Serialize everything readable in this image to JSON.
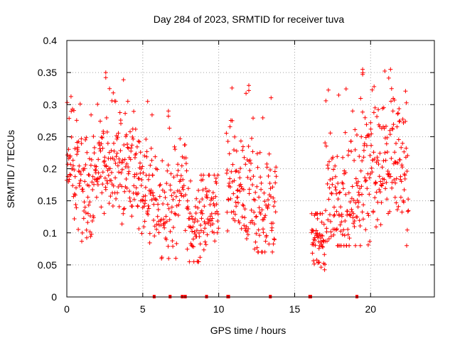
{
  "chart_data": {
    "type": "scatter",
    "title": "Day 284 of 2023, SRMTID for receiver tuva",
    "xlabel": "GPS time / hours",
    "ylabel": "SRMTID / TECUs",
    "xlim": [
      0,
      24.2
    ],
    "ylim": [
      0,
      0.4
    ],
    "x_ticks": [
      0,
      5,
      10,
      15,
      20
    ],
    "x_tick_labels": [
      "0",
      "5",
      "10",
      "15",
      "20"
    ],
    "y_ticks": [
      0,
      0.05,
      0.1,
      0.15,
      0.2,
      0.25,
      0.3,
      0.35,
      0.4
    ],
    "y_tick_labels": [
      "0",
      "0.05",
      "0.1",
      "0.15",
      "0.2",
      "0.25",
      "0.3",
      "0.35",
      "0.4"
    ],
    "grid": true,
    "marker": "plus",
    "color": "#ff0000",
    "series": [
      {
        "name": "SRMTID",
        "segments": [
          {
            "x_start": 0.0,
            "x_end": 5.7,
            "points_per_hour": 55,
            "base": [
              0.22,
              0.2,
              0.18,
              0.16,
              0.19,
              0.21,
              0.24,
              0.22,
              0.2,
              0.18,
              0.16,
              0.15
            ],
            "spread": 0.045,
            "max": 0.35,
            "min": 0.08
          },
          {
            "x_start": 5.7,
            "x_end": 7.9,
            "points_per_hour": 45,
            "base": [
              0.15,
              0.14,
              0.13,
              0.15,
              0.17,
              0.18
            ],
            "spread": 0.035,
            "max": 0.29,
            "min": 0.06
          },
          {
            "x_start": 7.9,
            "x_end": 10.0,
            "points_per_hour": 50,
            "base": [
              0.11,
              0.1,
              0.1,
              0.12,
              0.14,
              0.15
            ],
            "spread": 0.03,
            "max": 0.19,
            "min": 0.055
          },
          {
            "x_start": 10.5,
            "x_end": 13.8,
            "points_per_hour": 50,
            "base": [
              0.2,
              0.17,
              0.15,
              0.14,
              0.13,
              0.14,
              0.15
            ],
            "spread": 0.045,
            "max": 0.33,
            "min": 0.07
          },
          {
            "x_start": 16.1,
            "x_end": 17.0,
            "points_per_hour": 60,
            "base": [
              0.1,
              0.08,
              0.07
            ],
            "spread": 0.022,
            "max": 0.13,
            "min": 0.035
          },
          {
            "x_start": 17.0,
            "x_end": 22.5,
            "points_per_hour": 55,
            "base": [
              0.16,
              0.15,
              0.13,
              0.13,
              0.17,
              0.19,
              0.21,
              0.22,
              0.23,
              0.2,
              0.17
            ],
            "spread": 0.05,
            "max": 0.355,
            "min": 0.08
          }
        ],
        "zero_points_x": [
          5.75,
          6.8,
          7.6,
          7.8,
          9.2,
          10.6,
          10.65,
          13.4,
          16.0,
          16.05,
          19.1
        ]
      }
    ]
  }
}
